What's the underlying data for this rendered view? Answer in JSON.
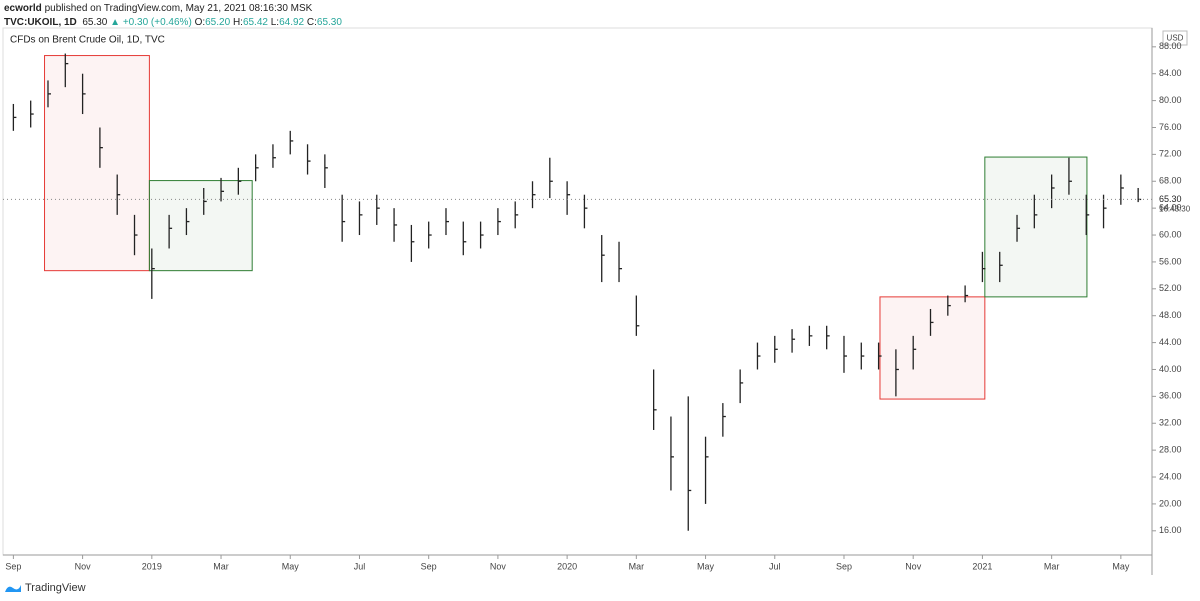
{
  "header": {
    "author": "ecworld",
    "published": "published on TradingView.com, May 21, 2021 08:16:30 MSK",
    "symbol": "TVC:UKOIL, 1D",
    "price": "65.30",
    "change": "▲ +0.30 (+0.46%)",
    "ohlc": [
      {
        "label": "O:",
        "value": "65.20"
      },
      {
        "label": "H:",
        "value": "65.42"
      },
      {
        "label": "L:",
        "value": "64.92"
      },
      {
        "label": "C:",
        "value": "65.30"
      }
    ]
  },
  "footer": {
    "brand": "TradingView"
  },
  "chart_data": {
    "type": "ohlc",
    "title": "CFDs on Brent Crude Oil, 1D, TVC",
    "currency": "USD",
    "color": "#222222",
    "x": [
      0,
      0.5,
      1,
      1.5,
      2,
      2.5,
      3,
      3.5,
      4,
      4.5,
      5,
      5.5,
      6,
      6.5,
      7,
      7.5,
      8,
      8.5,
      9,
      9.5,
      10,
      10.5,
      11,
      11.5,
      12,
      12.5,
      13,
      13.5,
      14,
      14.5,
      15,
      15.5,
      16,
      16.5,
      17,
      17.5,
      18,
      18.5,
      19,
      19.5,
      20,
      20.5,
      21,
      21.5,
      22,
      22.5,
      23,
      23.5,
      24,
      24.5,
      25,
      25.5,
      26,
      26.5,
      27,
      27.5,
      28,
      28.5,
      29,
      29.5,
      30,
      30.5,
      31,
      31.5,
      32,
      32.5
    ],
    "high": [
      79.5,
      80,
      83,
      87,
      84,
      76,
      69,
      63,
      58,
      63,
      64,
      67,
      68.5,
      70,
      72,
      73.5,
      75.5,
      73.5,
      72,
      66,
      65,
      66,
      64,
      61.5,
      62,
      64,
      62,
      62,
      64,
      65,
      68,
      71.5,
      68,
      66,
      60,
      59,
      51,
      40,
      33,
      36,
      30,
      35,
      40,
      44,
      45,
      46,
      46.5,
      46.5,
      45,
      44,
      44,
      43,
      45,
      49,
      51,
      52.5,
      57.5,
      57.5,
      63,
      66,
      69,
      71.5,
      66,
      66,
      69,
      67
    ],
    "low": [
      75.5,
      76,
      79,
      82,
      78,
      70,
      63,
      57,
      50.5,
      58,
      60,
      63,
      65,
      66,
      68,
      70,
      72,
      69,
      67,
      59,
      60,
      61.5,
      59,
      56,
      58,
      60,
      57,
      58,
      60,
      61,
      64,
      65.5,
      63,
      61,
      53,
      53,
      45,
      31,
      22,
      16,
      20,
      30,
      35,
      40,
      41,
      42.5,
      43.5,
      43,
      39.5,
      40,
      40,
      36,
      40,
      45,
      48,
      50,
      53,
      53,
      59,
      61,
      64,
      66,
      60,
      61,
      64.5,
      64.9
    ],
    "close": [
      77.5,
      78,
      81,
      85.5,
      81,
      73,
      66,
      60,
      55,
      61,
      62,
      65,
      66.5,
      68,
      70,
      71.5,
      74,
      71,
      70,
      62,
      63,
      64,
      61.5,
      59,
      60,
      62,
      59,
      60,
      62,
      63,
      66,
      68,
      66,
      64,
      57,
      55,
      46.5,
      34,
      27,
      22,
      27,
      33,
      38,
      42,
      43,
      44.5,
      45,
      45,
      42,
      42,
      42,
      40,
      43,
      47,
      49.5,
      51,
      55,
      55.5,
      61,
      63,
      67,
      68,
      63,
      64,
      67,
      65.3
    ],
    "xlim": [
      -0.3,
      32.9
    ],
    "ylim": [
      12.4,
      90.8
    ],
    "xticks": [
      {
        "value": 0,
        "label": "Sep"
      },
      {
        "value": 2,
        "label": "Nov"
      },
      {
        "value": 4,
        "label": "2019"
      },
      {
        "value": 6,
        "label": "Mar"
      },
      {
        "value": 8,
        "label": "May"
      },
      {
        "value": 10,
        "label": "Jul"
      },
      {
        "value": 12,
        "label": "Sep"
      },
      {
        "value": 14,
        "label": "Nov"
      },
      {
        "value": 16,
        "label": "2020"
      },
      {
        "value": 18,
        "label": "Mar"
      },
      {
        "value": 20,
        "label": "May"
      },
      {
        "value": 22,
        "label": "Jul"
      },
      {
        "value": 24,
        "label": "Sep"
      },
      {
        "value": 26,
        "label": "Nov"
      },
      {
        "value": 28,
        "label": "2021"
      },
      {
        "value": 30,
        "label": "Mar"
      },
      {
        "value": 32,
        "label": "May"
      }
    ],
    "yticks": [
      {
        "value": 16,
        "label": "16.00"
      },
      {
        "value": 20,
        "label": "20.00"
      },
      {
        "value": 24,
        "label": "24.00"
      },
      {
        "value": 28,
        "label": "28.00"
      },
      {
        "value": 32,
        "label": "32.00"
      },
      {
        "value": 36,
        "label": "36.00"
      },
      {
        "value": 40,
        "label": "40.00"
      },
      {
        "value": 44,
        "label": "44.00"
      },
      {
        "value": 48,
        "label": "48.00"
      },
      {
        "value": 52,
        "label": "52.00"
      },
      {
        "value": 56,
        "label": "56.00"
      },
      {
        "value": 60,
        "label": "60.00"
      },
      {
        "value": 64,
        "label": "64.00"
      },
      {
        "value": 68,
        "label": "68.00"
      },
      {
        "value": 72,
        "label": "72.00"
      },
      {
        "value": 76,
        "label": "76.00"
      },
      {
        "value": 80,
        "label": "80.00"
      },
      {
        "value": 84,
        "label": "84.00"
      },
      {
        "value": 88,
        "label": "88.00"
      }
    ],
    "last_price": {
      "value": 65.3,
      "label": "65.30"
    },
    "countdown": "16:43:30",
    "boxes": [
      {
        "x": [
          0.9,
          3.93
        ],
        "y": [
          86.7,
          54.7
        ],
        "color": "#e53935"
      },
      {
        "x": [
          3.93,
          6.9
        ],
        "y": [
          68.1,
          54.7
        ],
        "color": "#2e7d32"
      },
      {
        "x": [
          25.04,
          28.07
        ],
        "y": [
          50.8,
          35.6
        ],
        "color": "#e53935"
      },
      {
        "x": [
          28.07,
          31.02
        ],
        "y": [
          71.6,
          50.8
        ],
        "color": "#2e7d32"
      }
    ]
  }
}
